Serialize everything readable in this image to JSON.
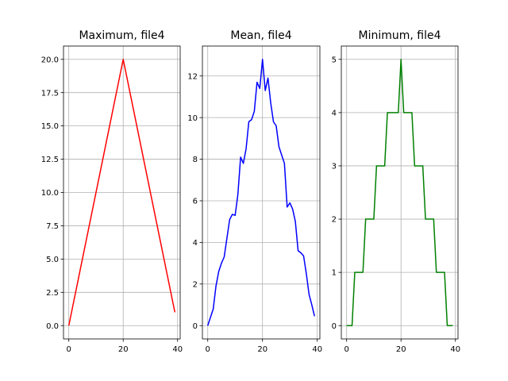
{
  "chart_data": [
    {
      "type": "line",
      "title": "Maximum, file4",
      "xlabel": "",
      "ylabel": "",
      "xlim": [
        -1.95,
        40.95
      ],
      "ylim": [
        -1.0,
        21.0
      ],
      "xticks": [
        0,
        20,
        40
      ],
      "yticks": [
        0.0,
        2.5,
        5.0,
        7.5,
        10.0,
        12.5,
        15.0,
        17.5,
        20.0
      ],
      "ytick_labels": [
        "0.0",
        "2.5",
        "5.0",
        "7.5",
        "10.0",
        "12.5",
        "15.0",
        "17.5",
        "20.0"
      ],
      "grid": true,
      "color": "#ff0000",
      "x": [
        0,
        20,
        39
      ],
      "y": [
        0,
        20,
        1
      ]
    },
    {
      "type": "line",
      "title": "Mean, file4",
      "xlabel": "",
      "ylabel": "",
      "xlim": [
        -1.95,
        40.95
      ],
      "ylim": [
        -0.64,
        13.44
      ],
      "xticks": [
        0,
        20,
        40
      ],
      "yticks": [
        0,
        2,
        4,
        6,
        8,
        10,
        12
      ],
      "ytick_labels": [
        "0",
        "2",
        "4",
        "6",
        "8",
        "10",
        "12"
      ],
      "grid": true,
      "color": "#0000ff",
      "x": [
        0,
        1,
        2,
        3,
        4,
        5,
        6,
        7,
        8,
        9,
        10,
        11,
        12,
        13,
        14,
        15,
        16,
        17,
        18,
        19,
        20,
        21,
        22,
        23,
        24,
        25,
        26,
        27,
        28,
        29,
        30,
        31,
        32,
        33,
        34,
        35,
        36,
        37,
        38,
        39
      ],
      "y": [
        0.0,
        0.4,
        0.8,
        1.9,
        2.6,
        3.0,
        3.3,
        4.2,
        5.1,
        5.35,
        5.3,
        6.3,
        8.1,
        7.8,
        8.5,
        9.8,
        9.9,
        10.3,
        11.7,
        11.4,
        12.8,
        11.3,
        11.9,
        10.7,
        9.8,
        9.6,
        8.6,
        8.2,
        7.8,
        5.7,
        5.9,
        5.6,
        5.0,
        3.6,
        3.5,
        3.35,
        2.5,
        1.5,
        1.0,
        0.45
      ]
    },
    {
      "type": "line",
      "title": "Minimum, file4",
      "xlabel": "",
      "ylabel": "",
      "xlim": [
        -1.95,
        40.95
      ],
      "ylim": [
        -0.25,
        5.25
      ],
      "xticks": [
        0,
        20,
        40
      ],
      "yticks": [
        0,
        1,
        2,
        3,
        4,
        5
      ],
      "ytick_labels": [
        "0",
        "1",
        "2",
        "3",
        "4",
        "5"
      ],
      "grid": true,
      "color": "#008000",
      "x": [
        0,
        1,
        2,
        3,
        4,
        5,
        6,
        7,
        8,
        9,
        10,
        11,
        12,
        13,
        14,
        15,
        16,
        17,
        18,
        19,
        20,
        21,
        22,
        23,
        24,
        25,
        26,
        27,
        28,
        29,
        30,
        31,
        32,
        33,
        34,
        35,
        36,
        37,
        38,
        39
      ],
      "y": [
        0,
        0,
        0,
        1,
        1,
        1,
        1,
        2,
        2,
        2,
        2,
        3,
        3,
        3,
        3,
        4,
        4,
        4,
        4,
        4,
        5,
        4,
        4,
        4,
        4,
        3,
        3,
        3,
        3,
        2,
        2,
        2,
        2,
        1,
        1,
        1,
        1,
        0,
        0,
        0
      ]
    }
  ]
}
